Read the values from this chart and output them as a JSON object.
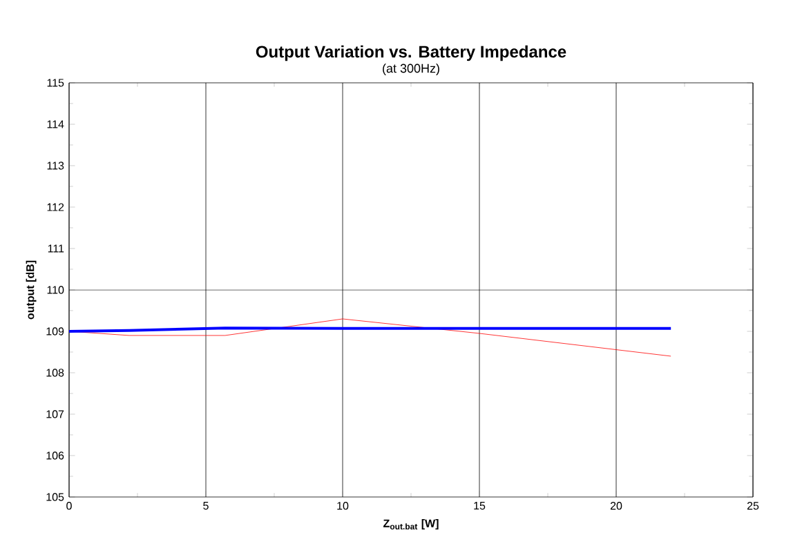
{
  "chart_data": {
    "type": "line",
    "title": "Output Variation vs. Battery Impedance",
    "subtitle": "(at 300Hz)",
    "xlabel": "Z$_{out.bat}$ [W]",
    "ylabel": "output [dB]",
    "xlim": [
      0,
      25
    ],
    "xticks": [
      0,
      5,
      10,
      15,
      20,
      25
    ],
    "ylim": [
      105,
      115
    ],
    "yticks": [
      105,
      106,
      107,
      108,
      109,
      110,
      111,
      112,
      113,
      114,
      115
    ],
    "grid": "x",
    "marker": "none",
    "line_style": "solid",
    "ref_lines": [
      {
        "axis": "y",
        "value": 110,
        "color": "#000000"
      }
    ],
    "x": [
      0,
      2.2,
      5.7,
      10,
      15,
      22
    ],
    "series": [
      {
        "color": "#ff0000",
        "values": [
          109.0,
          108.9,
          108.9,
          109.3,
          108.95,
          108.4
        ]
      },
      {
        "color": "#0000ff",
        "values": [
          109.0,
          109.02,
          109.08,
          109.07,
          109.07,
          109.07
        ]
      }
    ]
  }
}
